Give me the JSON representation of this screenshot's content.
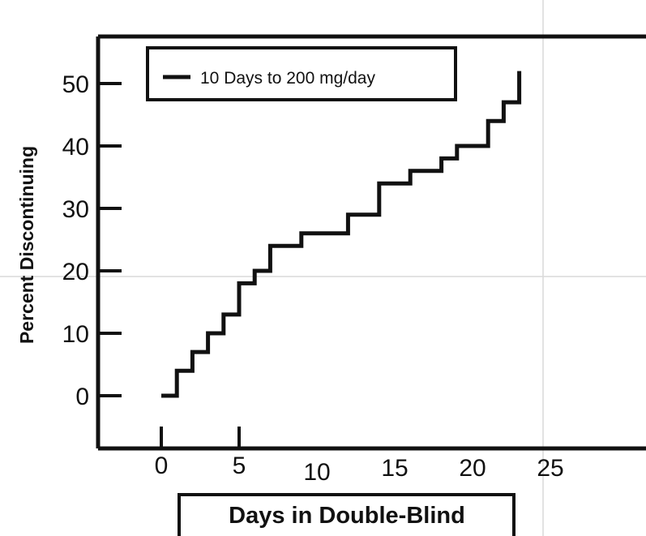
{
  "chart_data": {
    "type": "line",
    "step": true,
    "xlabel": "Days in Double-Blind",
    "ylabel": "Percent Discontinuing",
    "xlim": [
      -4,
      28
    ],
    "ylim": [
      -8,
      60
    ],
    "xticks": [
      0,
      5,
      10,
      15,
      20,
      25
    ],
    "yticks": [
      0,
      10,
      20,
      30,
      40,
      50
    ],
    "grid": false,
    "legend_position": "top-left",
    "series": [
      {
        "name": "10 Days to 200 mg/day",
        "color": "#111111",
        "x": [
          0,
          1,
          1,
          2,
          2,
          3,
          3,
          4,
          4,
          5,
          5,
          6,
          6,
          7,
          7,
          9,
          9,
          12,
          12,
          14,
          14,
          16,
          16,
          18,
          18,
          19,
          19,
          21,
          21,
          22,
          22,
          23,
          23
        ],
        "y": [
          0,
          0,
          4,
          4,
          7,
          7,
          10,
          10,
          13,
          13,
          18,
          18,
          20,
          20,
          24,
          24,
          26,
          26,
          29,
          29,
          34,
          34,
          36,
          36,
          38,
          38,
          40,
          40,
          44,
          44,
          47,
          47,
          52
        ]
      }
    ]
  }
}
